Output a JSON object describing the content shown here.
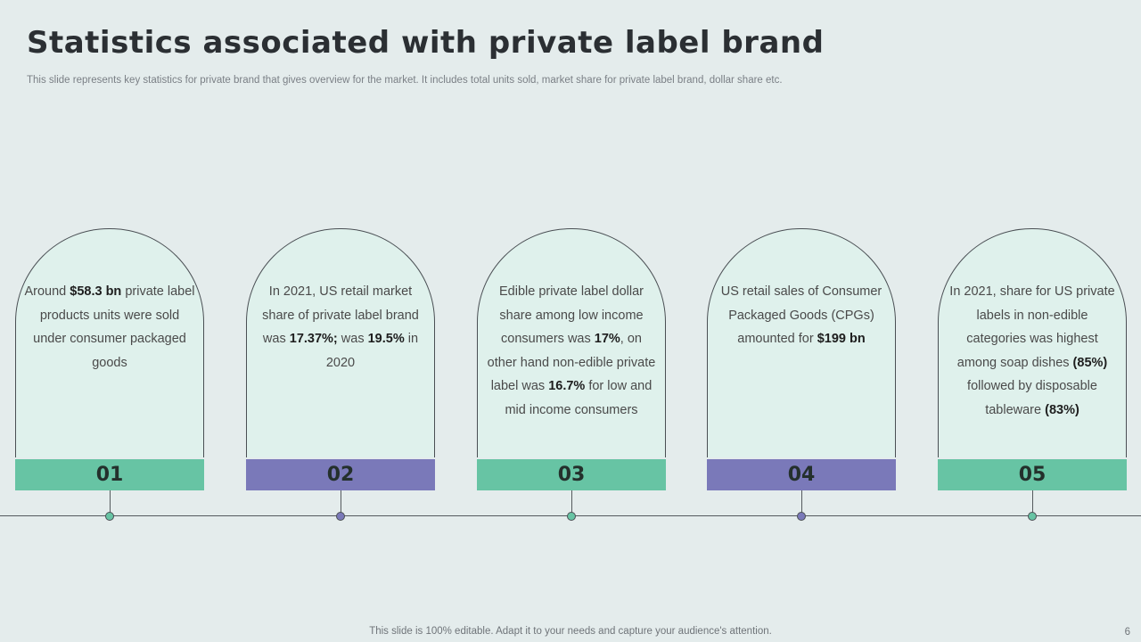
{
  "slide": {
    "title": "Statistics associated with private label brand",
    "subtitle": "This slide represents key statistics for private brand that gives overview for the market. It includes total units sold, market share for private label brand, dollar share etc.",
    "footer": "This slide is 100% editable. Adapt it to your needs and capture your audience's attention.",
    "page_number": "6"
  },
  "colors": {
    "background": "#e4ecec",
    "card_fill": "#dff1ec",
    "green": "#67c4a4",
    "purple": "#7a79b9",
    "title": "#2b2f33"
  },
  "cards": [
    {
      "number": "01",
      "color": "green",
      "parts": [
        {
          "t": "Around "
        },
        {
          "t": "$58.3 bn",
          "b": true
        },
        {
          "t": " private label products units were sold under consumer packaged goods"
        }
      ]
    },
    {
      "number": "02",
      "color": "purple",
      "parts": [
        {
          "t": "In 2021, US retail market share of private label brand was "
        },
        {
          "t": "17.37%;",
          "b": true
        },
        {
          "t": " was "
        },
        {
          "t": "19.5%",
          "b": true
        },
        {
          "t": " in 2020"
        }
      ]
    },
    {
      "number": "03",
      "color": "green",
      "parts": [
        {
          "t": "Edible private label dollar share among low income consumers was "
        },
        {
          "t": "17%",
          "b": true
        },
        {
          "t": ", on other hand non-edible private label was "
        },
        {
          "t": "16.7%",
          "b": true
        },
        {
          "t": " for low and mid income consumers"
        }
      ]
    },
    {
      "number": "04",
      "color": "purple",
      "parts": [
        {
          "t": "US retail sales of Consumer Packaged Goods (CPGs) amounted for "
        },
        {
          "t": "$199 bn",
          "b": true
        }
      ]
    },
    {
      "number": "05",
      "color": "green",
      "parts": [
        {
          "t": "In 2021, share for US private labels in non-edible categories was highest among soap dishes "
        },
        {
          "t": "(85%)",
          "b": true
        },
        {
          "t": " followed by disposable tableware "
        },
        {
          "t": "(83%)",
          "b": true
        }
      ]
    }
  ]
}
